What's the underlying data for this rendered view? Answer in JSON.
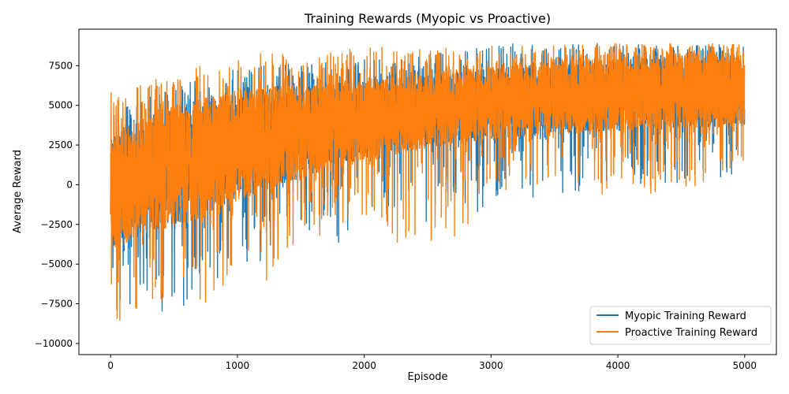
{
  "chart_data": {
    "type": "line",
    "title": "Training Rewards (Myopic vs Proactive)",
    "xlabel": "Episode",
    "ylabel": "Average Reward",
    "xlim": [
      -250,
      5250
    ],
    "ylim": [
      -10700,
      9800
    ],
    "x_ticks": [
      0,
      1000,
      2000,
      3000,
      4000,
      5000
    ],
    "x_tick_labels": [
      "0",
      "1000",
      "2000",
      "3000",
      "4000",
      "5000"
    ],
    "y_ticks": [
      -10000,
      -7500,
      -5000,
      -2500,
      0,
      2500,
      5000,
      7500
    ],
    "y_tick_labels": [
      "−10000",
      "−7500",
      "−5000",
      "−2500",
      "0",
      "2500",
      "5000",
      "7500"
    ],
    "grid": false,
    "legend_position": "lower-right",
    "series": [
      {
        "name": "Myopic Training Reward",
        "color": "#1f77b4",
        "envelope": {
          "x": [
            0,
            250,
            500,
            750,
            1000,
            1250,
            1500,
            1750,
            2000,
            2250,
            2500,
            2750,
            3000,
            3250,
            3500,
            3750,
            4000,
            4250,
            4500,
            4750,
            5000
          ],
          "typical_low": [
            -4000,
            -3000,
            -2600,
            -1800,
            -900,
            -200,
            400,
            1000,
            1600,
            2000,
            2300,
            2600,
            2800,
            3000,
            3200,
            3300,
            3400,
            3500,
            3600,
            3600,
            3700
          ],
          "typical_high": [
            3000,
            4200,
            4800,
            5400,
            5900,
            6100,
            6300,
            6400,
            6500,
            6700,
            6900,
            7100,
            7300,
            7500,
            7700,
            7800,
            7900,
            8000,
            8100,
            8200,
            8200
          ],
          "min": [
            -8000,
            -8000,
            -8000,
            -6900,
            -4400,
            -6200,
            -3200,
            -4500,
            -2400,
            -1400,
            -2700,
            -2800,
            -1200,
            -900,
            -700,
            -400,
            -300,
            -100,
            100,
            300,
            900
          ],
          "max": [
            4500,
            5400,
            6200,
            7000,
            7300,
            7600,
            7600,
            7800,
            7900,
            8100,
            8200,
            8400,
            8900,
            8900,
            8900,
            8900,
            8900,
            8900,
            8900,
            8900,
            8700
          ]
        }
      },
      {
        "name": "Proactive Training Reward",
        "color": "#ff7f0e",
        "envelope": {
          "x": [
            0,
            250,
            500,
            750,
            1000,
            1250,
            1500,
            1750,
            2000,
            2250,
            2500,
            2750,
            3000,
            3250,
            3500,
            3750,
            4000,
            4250,
            4500,
            4750,
            5000
          ],
          "typical_low": [
            -4200,
            -3200,
            -2800,
            -2000,
            -1000,
            -300,
            300,
            900,
            1500,
            1900,
            2300,
            2600,
            2800,
            3000,
            3100,
            3300,
            3400,
            3500,
            3600,
            3600,
            3700
          ],
          "typical_high": [
            3200,
            4300,
            5000,
            5500,
            6000,
            6200,
            6300,
            6400,
            6600,
            6800,
            7000,
            7300,
            7500,
            7700,
            7900,
            8000,
            8100,
            8200,
            8300,
            8400,
            8400
          ],
          "min": [
            -9700,
            -8000,
            -7000,
            -8000,
            -5700,
            -6500,
            -4200,
            -2800,
            -2300,
            -3800,
            -3800,
            -4000,
            -1000,
            -600,
            -800,
            -700,
            -900,
            -600,
            -200,
            0,
            800
          ],
          "max": [
            6200,
            6800,
            7200,
            7600,
            8000,
            8500,
            8000,
            8400,
            8900,
            8500,
            8700,
            8600,
            8900,
            8900,
            8900,
            8900,
            8900,
            8900,
            8900,
            8900,
            8800
          ]
        }
      }
    ]
  }
}
